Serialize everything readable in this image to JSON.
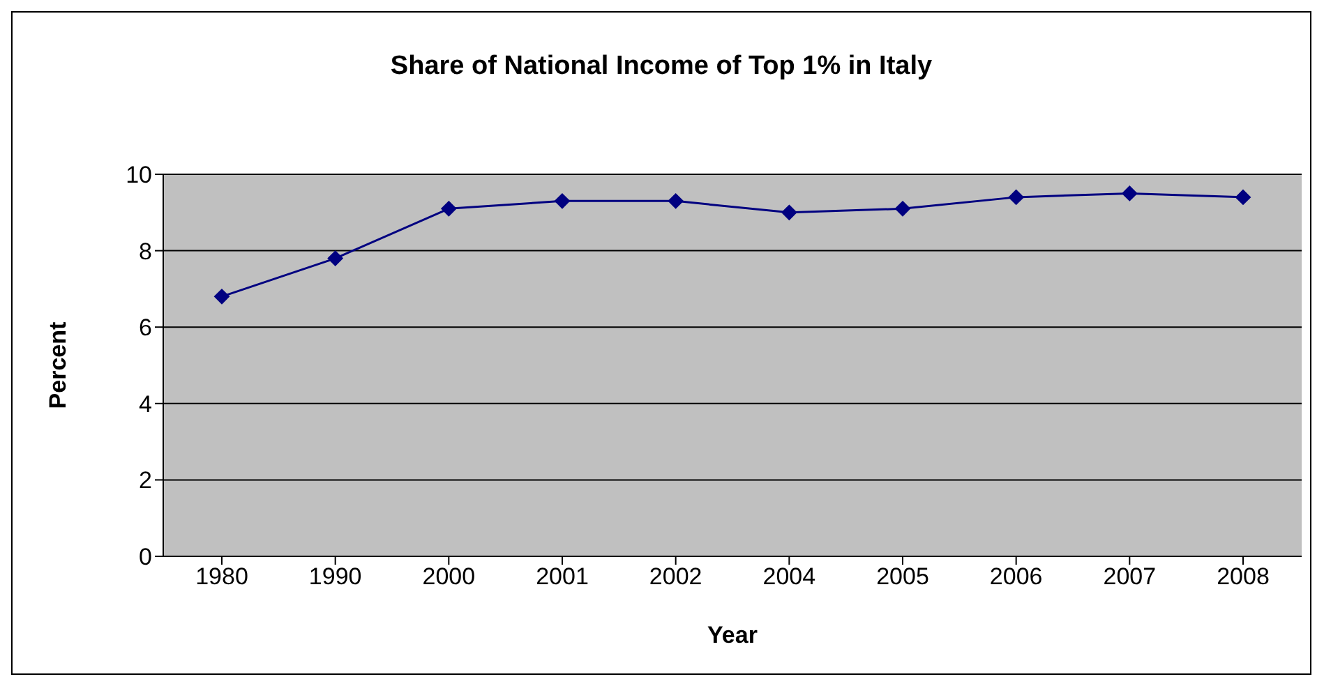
{
  "chart_data": {
    "type": "line",
    "title": "Share of National Income of Top 1% in Italy",
    "xlabel": "Year",
    "ylabel": "Percent",
    "categories": [
      "1980",
      "1990",
      "2000",
      "2001",
      "2002",
      "2004",
      "2005",
      "2006",
      "2007",
      "2008"
    ],
    "series": [
      {
        "color": "#000080",
        "values": [
          6.8,
          7.8,
          9.1,
          9.3,
          9.3,
          9.0,
          9.1,
          9.4,
          9.5,
          9.4
        ]
      }
    ],
    "ylim": [
      0,
      10
    ],
    "yticks": [
      0,
      2,
      4,
      6,
      8,
      10
    ],
    "grid": "y",
    "legend": false,
    "marker": "diamond",
    "line_style": "solid"
  }
}
